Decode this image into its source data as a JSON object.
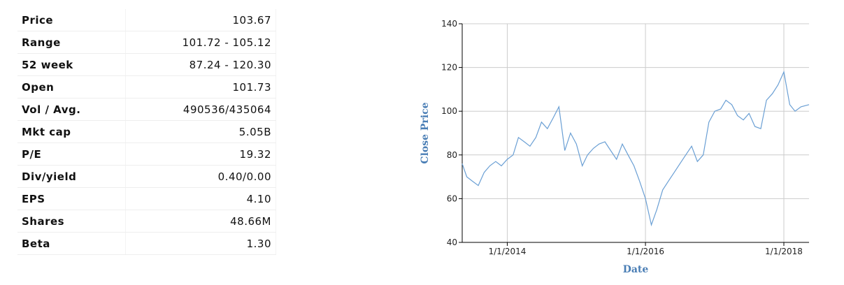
{
  "table": {
    "rows": [
      [
        "Price",
        "103.67"
      ],
      [
        "Range",
        "101.72 - 105.12"
      ],
      [
        "52 week",
        "87.24 - 120.30"
      ],
      [
        "Open",
        "101.73"
      ],
      [
        "Vol / Avg.",
        "490536/435064"
      ],
      [
        "Mkt cap",
        "5.05B"
      ],
      [
        "P/E",
        "19.32"
      ],
      [
        "Div/yield",
        "0.40/0.00"
      ],
      [
        "EPS",
        "4.10"
      ],
      [
        "Shares",
        "48.66M"
      ],
      [
        "Beta",
        "1.30"
      ]
    ]
  },
  "chart_data": {
    "type": "line",
    "x_label": "Date",
    "y_label": "Close Price",
    "color": "#6a9fd4",
    "grid": true,
    "x": [
      "2013-05-08",
      "2013-06-01",
      "2013-07-01",
      "2013-08-01",
      "2013-09-01",
      "2013-10-01",
      "2013-11-01",
      "2013-12-01",
      "2014-01-01",
      "2014-02-01",
      "2014-03-01",
      "2014-04-01",
      "2014-05-01",
      "2014-06-01",
      "2014-07-01",
      "2014-08-01",
      "2014-09-01",
      "2014-10-01",
      "2014-11-01",
      "2014-12-01",
      "2015-01-01",
      "2015-02-01",
      "2015-03-01",
      "2015-04-01",
      "2015-05-01",
      "2015-06-01",
      "2015-07-01",
      "2015-08-01",
      "2015-09-01",
      "2015-10-01",
      "2015-11-01",
      "2015-12-01",
      "2016-01-01",
      "2016-02-01",
      "2016-03-01",
      "2016-04-01",
      "2016-05-01",
      "2016-06-01",
      "2016-07-01",
      "2016-08-01",
      "2016-09-01",
      "2016-10-01",
      "2016-11-01",
      "2016-12-01",
      "2017-01-01",
      "2017-02-01",
      "2017-03-01",
      "2017-04-01",
      "2017-05-01",
      "2017-06-01",
      "2017-07-01",
      "2017-08-01",
      "2017-09-01",
      "2017-10-01",
      "2017-11-01",
      "2017-12-01",
      "2018-01-01",
      "2018-02-01",
      "2018-03-01",
      "2018-04-01",
      "2018-05-14"
    ],
    "values": [
      76,
      70,
      68,
      66,
      72,
      75,
      77,
      75,
      78,
      80,
      88,
      86,
      84,
      88,
      95,
      92,
      97,
      102,
      82,
      90,
      85,
      75,
      80,
      83,
      85,
      86,
      82,
      78,
      85,
      80,
      75,
      68,
      60,
      48,
      55,
      64,
      68,
      72,
      76,
      80,
      84,
      77,
      80,
      95,
      100,
      101,
      105,
      103,
      98,
      96,
      99,
      93,
      92,
      105,
      108,
      112,
      118,
      103,
      100,
      102,
      103
    ],
    "xlim": [
      "2013-05-08",
      "2018-05-14"
    ],
    "xticks": [
      {
        "value": "2014-01-01",
        "label": "1/1/2014"
      },
      {
        "value": "2016-01-01",
        "label": "1/1/2016"
      },
      {
        "value": "2018-01-01",
        "label": "1/1/2018"
      }
    ],
    "ylim": [
      40,
      140
    ],
    "yticks": [
      40,
      60,
      80,
      100,
      120,
      140
    ]
  }
}
